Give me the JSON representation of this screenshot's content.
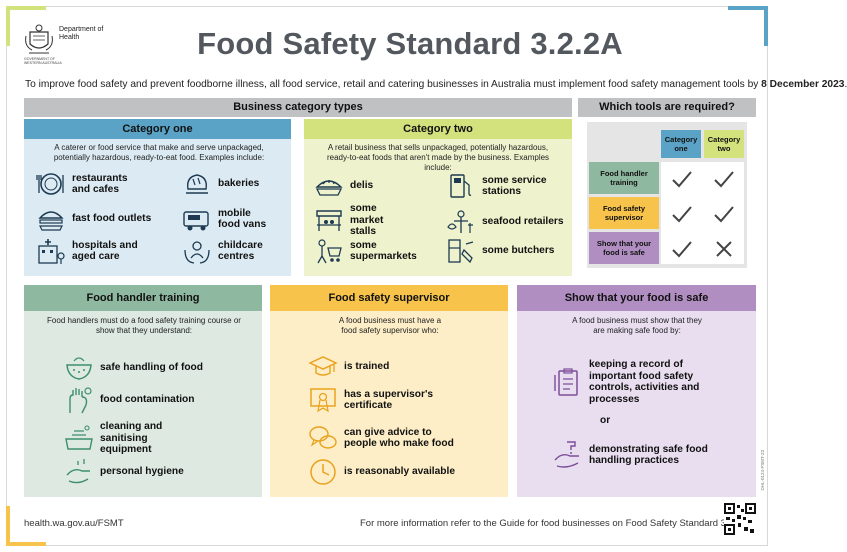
{
  "logo": {
    "line1": "Department of",
    "line2": "Health",
    "sub": "GOVERNMENT OF WESTERN AUSTRALIA"
  },
  "title": "Food Safety Standard 3.2.2A",
  "intro": {
    "text": "To improve food safety and prevent foodborne illness, all food service, retail and catering businesses in Australia must implement food safety management tools by ",
    "date": "8 December 2023",
    "end": "."
  },
  "business": {
    "header": "Business category types",
    "cat1": {
      "title": "Category one",
      "text": "A caterer or food service that make and serve unpackaged, potentially hazardous, ready-to-eat food. Examples include:",
      "items": [
        "restaurants and cafes",
        "fast food outlets",
        "hospitals and aged care",
        "bakeries",
        "mobile food vans",
        "childcare centres"
      ]
    },
    "cat2": {
      "title": "Category two",
      "text": "A retail business that sells unpackaged, potentially hazardous, ready-to-eat foods that aren't made by the business. Examples include:",
      "items": [
        "delis",
        "some market stalls",
        "some supermarkets",
        "some service stations",
        "seafood retailers",
        "some butchers"
      ]
    }
  },
  "tools": {
    "header": "Which tools are required?",
    "col1": "Category one",
    "col2": "Category two",
    "rows": [
      {
        "label": "Food handler training",
        "c1": "check",
        "c2": "check"
      },
      {
        "label": "Food safety supervisor",
        "c1": "check",
        "c2": "check"
      },
      {
        "label": "Show that your food is safe",
        "c1": "check",
        "c2": "cross"
      }
    ]
  },
  "training": {
    "title": "Food handler training",
    "text": "Food handlers must do a food safety training course or show that they understand:",
    "items": [
      "safe handling of food",
      "food contamination",
      "cleaning and sanitising equipment",
      "personal hygiene"
    ]
  },
  "supervisor": {
    "title": "Food safety supervisor",
    "text": "A food business must have a food safety supervisor who:",
    "items": [
      "is trained",
      "has a supervisor's certificate",
      "can give advice to people who make food",
      "is reasonably available"
    ]
  },
  "safe": {
    "title": "Show that your food is safe",
    "text": "A food business must show that they are making safe food by:",
    "item1": "keeping a record of important food safety controls, activities and processes",
    "or": "or",
    "item2": "demonstrating safe food handling practices"
  },
  "footer": {
    "url": "health.wa.gov.au/FSMT",
    "more": "For more information refer to the Guide for food businesses on Food Safety Standard 3.2.2A.",
    "code": "DHL-0124-FSMT-23"
  },
  "colors": {
    "blue": "#5aa3c6",
    "blue_bg": "#dcebf3",
    "lime": "#d4e27d",
    "lime_bg": "#eef3cd",
    "green": "#8fb8a0",
    "green_bg": "#dde9e1",
    "orange": "#f7c34a",
    "orange_bg": "#fdeec7",
    "purple": "#b08ec1",
    "purple_bg": "#e8def0",
    "icon_blue": "#1d3a52",
    "icon_green": "#3e8f6b",
    "icon_orange": "#e9a21d",
    "icon_purple": "#7d4e99"
  }
}
